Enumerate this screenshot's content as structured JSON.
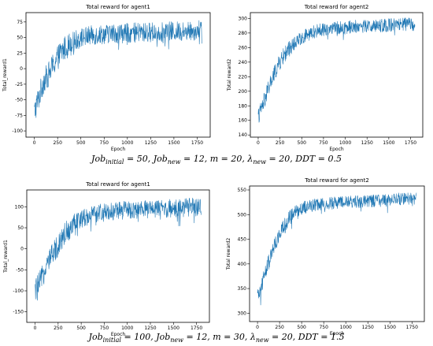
{
  "chart_data": [
    {
      "type": "line",
      "title": "Total reward for agent1",
      "xlabel": "Epoch",
      "ylabel": "Total_reward1",
      "xlim": [
        -90,
        1890
      ],
      "ylim": [
        -110,
        90
      ],
      "xticks": [
        0,
        250,
        500,
        750,
        1000,
        1250,
        1500,
        1750
      ],
      "yticks": [
        -100,
        -75,
        -50,
        -25,
        0,
        25,
        50,
        75
      ],
      "series": [
        {
          "color": "#1f77b4",
          "x": [
            0,
            50,
            100,
            150,
            200,
            250,
            300,
            350,
            400,
            450,
            500,
            600,
            700,
            800,
            900,
            1000,
            1100,
            1200,
            1300,
            1400,
            1500,
            1600,
            1700,
            1800
          ],
          "values": [
            -70,
            -45,
            -20,
            -10,
            5,
            18,
            28,
            36,
            42,
            46,
            50,
            53,
            55,
            56,
            57,
            57,
            58,
            58,
            59,
            59,
            60,
            60,
            61,
            62
          ]
        }
      ],
      "noise_amplitude": 16,
      "y_extremes": [
        -102,
        82
      ]
    },
    {
      "type": "line",
      "title": "Total reward for agent2",
      "xlabel": "Epoch",
      "ylabel": "Total reward2",
      "xlim": [
        -90,
        1890
      ],
      "ylim": [
        137,
        308
      ],
      "xticks": [
        0,
        250,
        500,
        750,
        1000,
        1250,
        1500,
        1750
      ],
      "yticks": [
        140,
        160,
        180,
        200,
        220,
        240,
        260,
        280,
        300
      ],
      "series": [
        {
          "color": "#1f77b4",
          "x": [
            0,
            50,
            100,
            150,
            200,
            250,
            300,
            350,
            400,
            450,
            500,
            600,
            700,
            800,
            900,
            1000,
            1100,
            1200,
            1300,
            1400,
            1500,
            1600,
            1700,
            1800
          ],
          "values": [
            165,
            180,
            198,
            214,
            228,
            240,
            250,
            258,
            264,
            270,
            274,
            280,
            284,
            286,
            287,
            288,
            289,
            289,
            290,
            290,
            291,
            291,
            292,
            292
          ]
        }
      ],
      "noise_amplitude": 9,
      "y_extremes": [
        148,
        305
      ]
    },
    {
      "type": "line",
      "title": "Total reward for agent1",
      "xlabel": "Epoch",
      "ylabel": "Total_reward1",
      "xlim": [
        -90,
        1890
      ],
      "ylim": [
        -175,
        140
      ],
      "xticks": [
        0,
        250,
        500,
        750,
        1000,
        1250,
        1500,
        1750
      ],
      "yticks": [
        -150,
        -100,
        -50,
        0,
        50,
        100
      ],
      "series": [
        {
          "color": "#1f77b4",
          "x": [
            0,
            50,
            100,
            150,
            200,
            250,
            300,
            350,
            400,
            450,
            500,
            600,
            700,
            800,
            900,
            1000,
            1100,
            1200,
            1300,
            1400,
            1500,
            1600,
            1700,
            1800
          ],
          "values": [
            -100,
            -80,
            -55,
            -30,
            -10,
            10,
            30,
            45,
            57,
            65,
            72,
            80,
            85,
            88,
            90,
            92,
            93,
            94,
            95,
            96,
            97,
            98,
            99,
            100
          ]
        }
      ],
      "noise_amplitude": 22,
      "y_extremes": [
        -160,
        128
      ]
    },
    {
      "type": "line",
      "title": "Total reward for agent2",
      "xlabel": "Epoch",
      "ylabel": "Total reward2",
      "xlim": [
        -90,
        1890
      ],
      "ylim": [
        283,
        558
      ],
      "xticks": [
        0,
        250,
        500,
        750,
        1000,
        1250,
        1500,
        1750
      ],
      "yticks": [
        300,
        350,
        400,
        450,
        500,
        550
      ],
      "series": [
        {
          "color": "#1f77b4",
          "x": [
            0,
            50,
            100,
            150,
            200,
            250,
            300,
            350,
            400,
            450,
            500,
            600,
            700,
            800,
            900,
            1000,
            1100,
            1200,
            1300,
            1400,
            1500,
            1600,
            1700,
            1800
          ],
          "values": [
            330,
            360,
            390,
            415,
            440,
            460,
            475,
            490,
            500,
            508,
            513,
            518,
            521,
            523,
            524,
            525,
            526,
            527,
            528,
            529,
            530,
            531,
            532,
            533
          ]
        }
      ],
      "noise_amplitude": 13,
      "y_extremes": [
        300,
        550
      ]
    }
  ],
  "captions": {
    "top": {
      "job_initial": "Job",
      "job_initial_sub": "initial",
      "job_initial_val": " = 50, ",
      "job_new": "Job",
      "job_new_sub": "new",
      "job_new_val": " = 12, ",
      "m_val": "m = 20, ",
      "lambda": "λ",
      "lambda_sub": "new",
      "lambda_val": " = 20, ",
      "ddt_val": "DDT = 0.5"
    },
    "bottom": {
      "job_initial": "Job",
      "job_initial_sub": "initial",
      "job_initial_val": " = 100, ",
      "job_new": "Job",
      "job_new_sub": "new",
      "job_new_val": " = 12, ",
      "m_val": "m = 30, ",
      "lambda": "λ",
      "lambda_sub": "new",
      "lambda_val": " = 20, ",
      "ddt_val": "DDT = 1.5"
    }
  }
}
